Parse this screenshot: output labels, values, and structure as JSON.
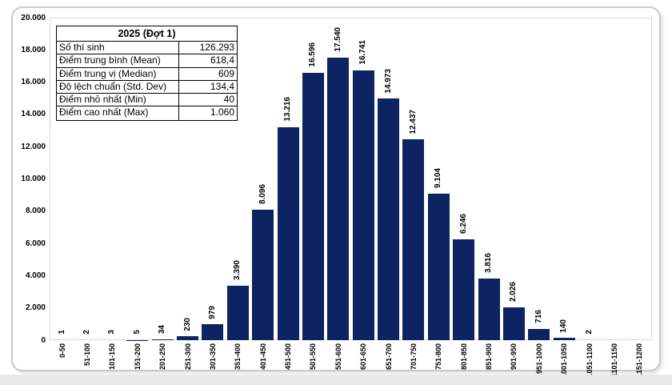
{
  "page": {
    "background": "#ffffff",
    "card_border": "#c9c9c9",
    "plot_border": "#d9d9d9",
    "bottom_strip_color": "#e8e8e8"
  },
  "stats_table": {
    "title": "2025 (Đợt 1)",
    "rows": [
      {
        "label": "Số thí sinh",
        "value": "126.293"
      },
      {
        "label": "Điểm trung bình (Mean)",
        "value": "618,4"
      },
      {
        "label": "Điểm trung vị (Median)",
        "value": "609"
      },
      {
        "label": "Độ lệch chuẩn (Std. Dev)",
        "value": "134,4"
      },
      {
        "label": "Điểm nhỏ nhất (Min)",
        "value": "40"
      },
      {
        "label": "Điểm cao nhất (Max)",
        "value": "1.060"
      }
    ]
  },
  "chart_data": {
    "type": "bar",
    "title": "",
    "xlabel": "",
    "ylabel": "",
    "grid": false,
    "legend": "none",
    "bar_color": "#0e2361",
    "ylim": [
      0,
      20000
    ],
    "y_ticks": [
      "0",
      "2.000",
      "4.000",
      "6.000",
      "8.000",
      "10.000",
      "12.000",
      "14.000",
      "16.000",
      "18.000",
      "20.000"
    ],
    "categories": [
      "0-50",
      "51-100",
      "101-150",
      "151-200",
      "201-250",
      "251-300",
      "301-350",
      "351-400",
      "401-450",
      "451-500",
      "501-550",
      "551-600",
      "601-650",
      "651-700",
      "701-750",
      "751-800",
      "801-850",
      "851-900",
      "901-950",
      "951-1000",
      "1001-1050",
      "1051-1100",
      "1101-1150",
      "1151-1200"
    ],
    "values": [
      1,
      2,
      3,
      5,
      34,
      230,
      979,
      3390,
      8096,
      13216,
      16596,
      17540,
      16741,
      14973,
      12437,
      9104,
      6246,
      3816,
      2026,
      716,
      140,
      2,
      0,
      0
    ],
    "value_labels": [
      "1",
      "2",
      "3",
      "5",
      "34",
      "230",
      "979",
      "3.390",
      "8.096",
      "13.216",
      "16.596",
      "17.540",
      "16.741",
      "14.973",
      "12.437",
      "9.104",
      "6.246",
      "3.816",
      "2.026",
      "716",
      "140",
      "2",
      "",
      ""
    ]
  }
}
